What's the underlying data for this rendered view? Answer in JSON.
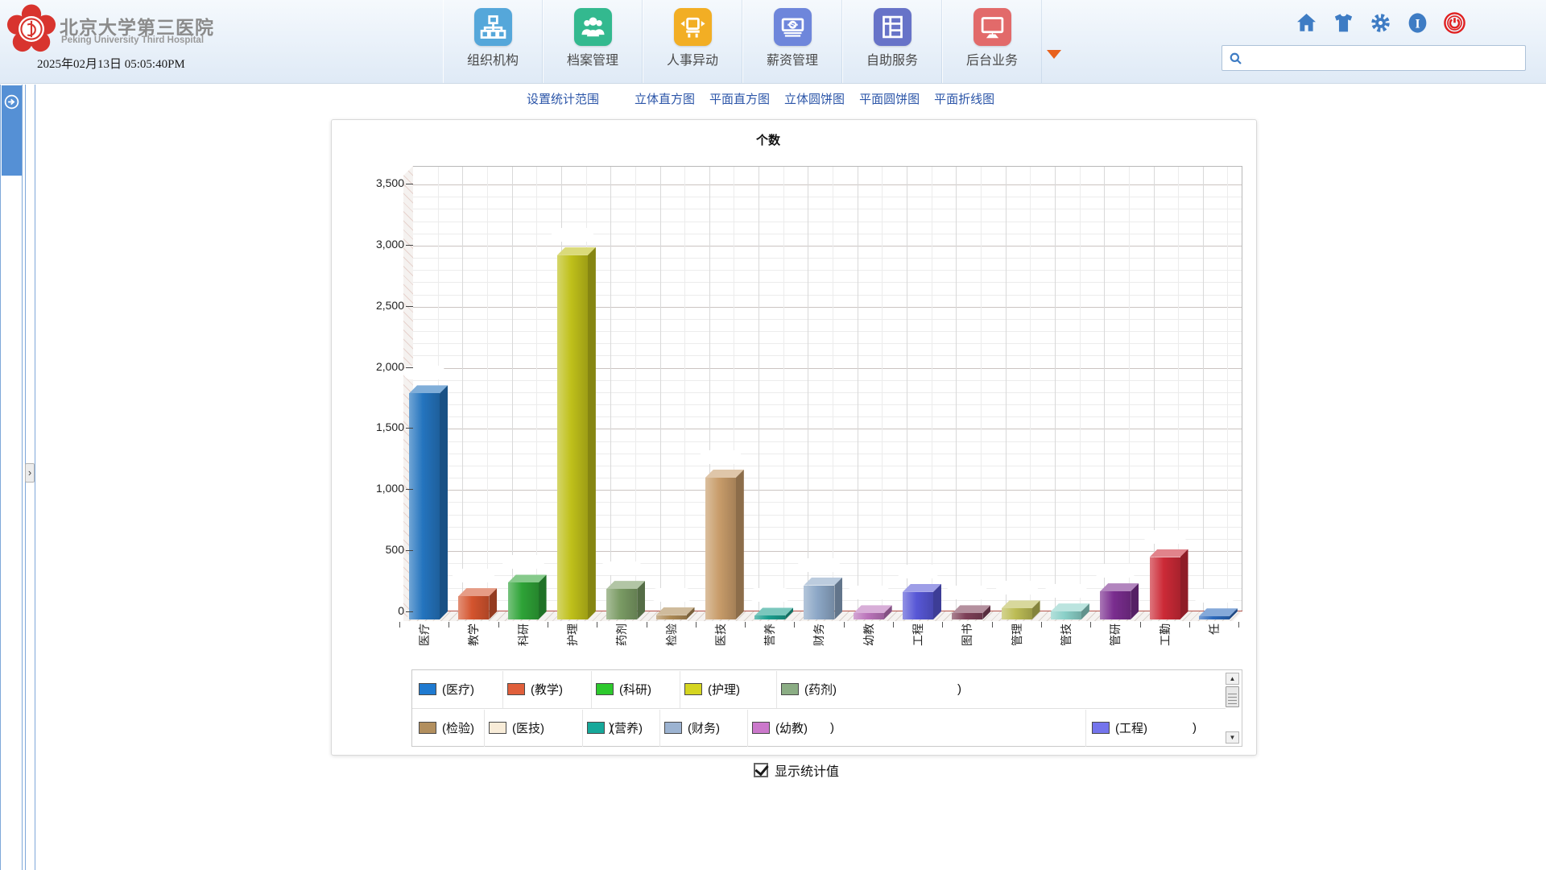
{
  "header": {
    "hospital_name_zh": "北京大学第三医院",
    "hospital_name_en": "Peking University Third Hospital",
    "datetime": "2025年02月13日 05:05:40PM",
    "menu": [
      {
        "label": "组织机构",
        "icon": "org-chart-icon",
        "color": "#55a7da"
      },
      {
        "label": "档案管理",
        "icon": "people-icon",
        "color": "#33b98f"
      },
      {
        "label": "人事异动",
        "icon": "transfer-icon",
        "color": "#f2ae24"
      },
      {
        "label": "薪资管理",
        "icon": "money-icon",
        "color": "#6e86db"
      },
      {
        "label": "自助服务",
        "icon": "grid-icon",
        "color": "#6773c8"
      },
      {
        "label": "后台业务",
        "icon": "monitor-icon",
        "color": "#e26a6a"
      }
    ],
    "quick_icons": [
      {
        "icon": "home-icon",
        "color": "#3e7cc4"
      },
      {
        "icon": "shirt-icon",
        "color": "#3e7cc4"
      },
      {
        "icon": "gear-icon",
        "color": "#3e7cc4"
      },
      {
        "icon": "info-icon",
        "color": "#3e7cc4"
      },
      {
        "icon": "power-icon",
        "color": "#e02020"
      }
    ],
    "search": {
      "value": "",
      "placeholder": ""
    }
  },
  "toolbar": {
    "links": [
      "设置统计范围",
      "立体直方图",
      "平面直方图",
      "立体圆饼图",
      "平面圆饼图",
      "平面折线图"
    ]
  },
  "chart_data": {
    "type": "bar",
    "style": "3d-column",
    "title": "个数",
    "categories": [
      "医疗",
      "教学",
      "科研",
      "护理",
      "药剂",
      "检验",
      "医技",
      "营养",
      "财务",
      "幼教",
      "工程",
      "图书",
      "管理",
      "管技",
      "管研",
      "工勤",
      "任"
    ],
    "values": [
      1850,
      190,
      300,
      2980,
      250,
      35,
      1160,
      30,
      280,
      50,
      225,
      50,
      90,
      65,
      230,
      510,
      25
    ],
    "bar_colors": [
      "#2474be",
      "#d4542e",
      "#2ea337",
      "#bfc01a",
      "#7a9b64",
      "#ad8a55",
      "#c89c6a",
      "#1b9e8e",
      "#8ca7c6",
      "#bb74bb",
      "#5757d6",
      "#7e4058",
      "#bcbc55",
      "#8ad0c8",
      "#7a2d8f",
      "#cc2a37",
      "#2d6abd"
    ],
    "ylim": [
      0,
      3500
    ],
    "ytick_step": 500,
    "ytick_labels": [
      "0",
      "500",
      "1,000",
      "1,500",
      "2,000",
      "2,500",
      "3,000",
      "3,500"
    ],
    "grid": true,
    "value_labels_redacted": true,
    "legend_position": "bottom",
    "legend_rows": [
      [
        {
          "label": "(医疗)",
          "suffix": ")",
          "color": "#1f7ad0"
        },
        {
          "label": "(教学)",
          "suffix": ")",
          "color": "#e05f3b"
        },
        {
          "label": "(科研)",
          "suffix": ")",
          "color": "#2dc92d"
        },
        {
          "label": "(护理)",
          "suffix": ")",
          "color": "#d5d520"
        },
        {
          "label": "(药剂)",
          "suffix": ")",
          "color": "#8bad84"
        }
      ],
      [
        {
          "label": "(检验)",
          "suffix": ")",
          "color": "#b28f5e"
        },
        {
          "label": "(医技)",
          "suffix": ")",
          "color": "#f8ecd8"
        },
        {
          "label": "(营养)",
          "suffix": ")",
          "color": "#16a89a"
        },
        {
          "label": "(财务)",
          "suffix": ")",
          "color": "#9cb3d1"
        },
        {
          "label": "(幼教)",
          "suffix": ")",
          "color": "#cb78cb"
        },
        {
          "label": "(工程)",
          "suffix": ")",
          "color": "#7474ec"
        }
      ]
    ]
  },
  "footer": {
    "checkbox_label": "显示统计值",
    "checked": true
  }
}
